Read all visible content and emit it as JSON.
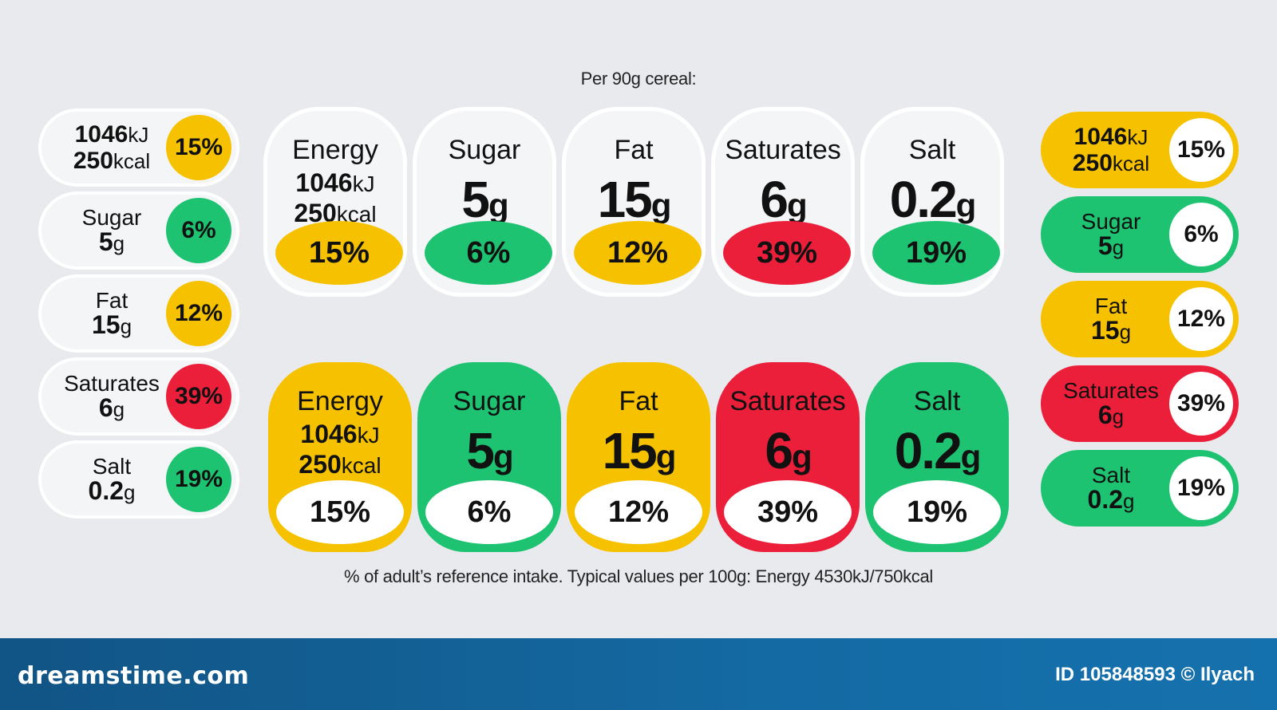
{
  "header": {
    "caption": "Per 90g cereal:"
  },
  "footer_note": "% of adult’s reference intake. Typical values per 100g: Energy 4530kJ/750kcal",
  "colors": {
    "amber": "#f6c200",
    "green": "#1ec372",
    "red": "#ec1f3a",
    "background": "#e9eaee",
    "tile_white": "#ffffff",
    "banner": "#1268a5"
  },
  "energy": {
    "kj_value": "1046",
    "kj_unit": "kJ",
    "kcal_value": "250",
    "kcal_unit": "kcal",
    "percent": "15%",
    "level": "amber"
  },
  "nutrients": [
    {
      "name": "Energy",
      "value": "",
      "unit": "",
      "percent": "15%",
      "level": "amber"
    },
    {
      "name": "Sugar",
      "value": "5",
      "unit": "g",
      "percent": "6%",
      "level": "green"
    },
    {
      "name": "Fat",
      "value": "15",
      "unit": "g",
      "percent": "12%",
      "level": "amber"
    },
    {
      "name": "Saturates",
      "value": "6",
      "unit": "g",
      "percent": "39%",
      "level": "red"
    },
    {
      "name": "Salt",
      "value": "0.2",
      "unit": "g",
      "percent": "19%",
      "level": "green"
    }
  ],
  "watermark": {
    "brand": "dreamstime.com",
    "credit": "ID 105848593 © Ilyach"
  }
}
